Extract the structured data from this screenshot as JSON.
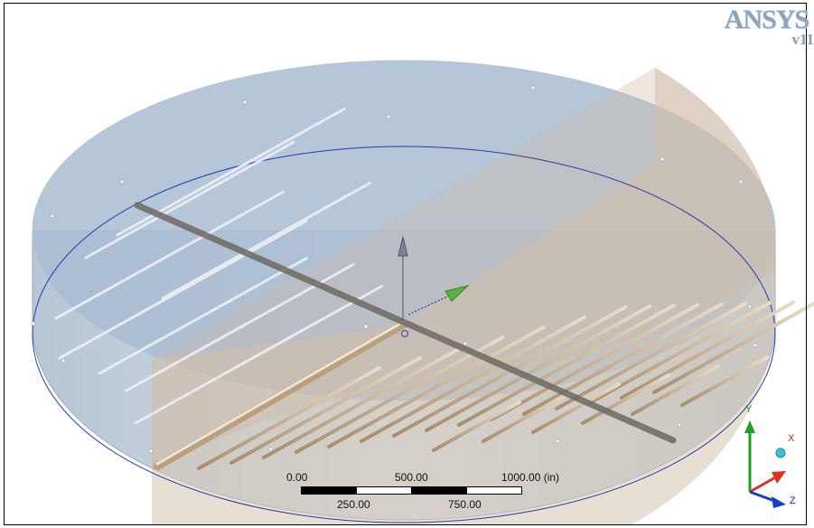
{
  "app": {
    "logo_text": "ANSYS",
    "version_text": "v11"
  },
  "scale_bar": {
    "top_labels": [
      "0.00",
      "500.00",
      "1000.00 (in)"
    ],
    "bottom_labels": [
      "250.00",
      "750.00"
    ]
  },
  "triad": {
    "x_label": "X",
    "y_label": "Y",
    "z_label": "Z"
  },
  "colors": {
    "background": "#ffffff",
    "tank_blue": "#9db4cf",
    "pipe_tan": "#c8ad8a",
    "axis_x": "#e03020",
    "axis_y": "#20a020",
    "axis_z": "#1040d0"
  }
}
